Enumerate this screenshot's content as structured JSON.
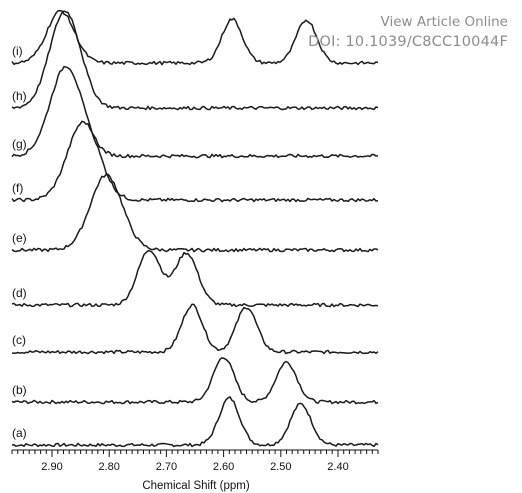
{
  "watermark": {
    "line1": "View Article Online",
    "line2": "DOI: 10.1039/C8CC10044F"
  },
  "chart_data": {
    "type": "line",
    "title": "",
    "xlabel": "Chemical Shift (ppm)",
    "ylabel": "",
    "xlim": [
      2.97,
      2.33
    ],
    "x_reversed": true,
    "xticks": [
      2.9,
      2.8,
      2.7,
      2.6,
      2.5,
      2.4
    ],
    "xtick_labels": [
      "2.90",
      "2.80",
      "2.70",
      "2.60",
      "2.50",
      "2.40"
    ],
    "y_shown": false,
    "grid": false,
    "note_values": "stacked NMR traces; peak heights are relative intensity",
    "series": [
      {
        "label": "(a)",
        "peaks": [
          {
            "center": 2.59,
            "height": 47,
            "width": 0.018
          },
          {
            "center": 2.465,
            "height": 41,
            "width": 0.018
          }
        ]
      },
      {
        "label": "(b)",
        "peaks": [
          {
            "center": 2.6,
            "height": 45,
            "width": 0.018
          },
          {
            "center": 2.49,
            "height": 40,
            "width": 0.018
          }
        ]
      },
      {
        "label": "(c)",
        "peaks": [
          {
            "center": 2.655,
            "height": 47,
            "width": 0.018
          },
          {
            "center": 2.56,
            "height": 45,
            "width": 0.018
          }
        ]
      },
      {
        "label": "(d)",
        "peaks": [
          {
            "center": 2.73,
            "height": 55,
            "width": 0.02
          },
          {
            "center": 2.665,
            "height": 52,
            "width": 0.02
          }
        ]
      },
      {
        "label": "(e)",
        "peaks": [
          {
            "center": 2.805,
            "height": 75,
            "width": 0.028
          }
        ]
      },
      {
        "label": "(f)",
        "peaks": [
          {
            "center": 2.845,
            "height": 78,
            "width": 0.028
          }
        ]
      },
      {
        "label": "(g)",
        "peaks": [
          {
            "center": 2.875,
            "height": 90,
            "width": 0.028
          }
        ]
      },
      {
        "label": "(h)",
        "peaks": [
          {
            "center": 2.877,
            "height": 97,
            "width": 0.027
          }
        ]
      },
      {
        "label": "(i)",
        "peaks": [
          {
            "center": 2.885,
            "height": 52,
            "width": 0.024
          },
          {
            "center": 2.585,
            "height": 44,
            "width": 0.018
          },
          {
            "center": 2.455,
            "height": 43,
            "width": 0.018
          }
        ]
      }
    ]
  }
}
